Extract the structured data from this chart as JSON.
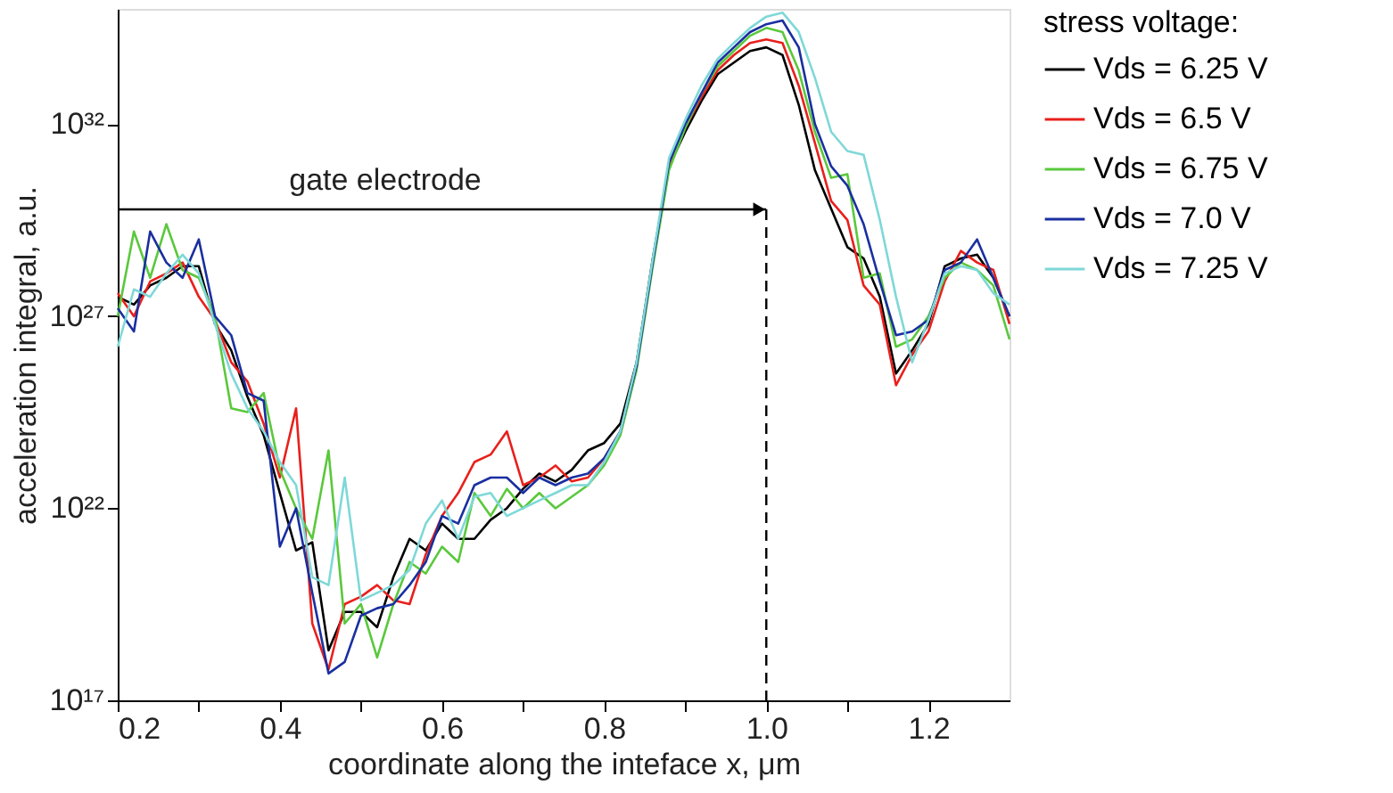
{
  "chart_data": {
    "type": "line",
    "xlabel": "coordinate along the inteface x, μm",
    "ylabel": "acceleration integral, a.u.",
    "legend_title": "stress voltage:",
    "legend": "right",
    "log": "y",
    "grid": false,
    "line_style": "solid",
    "marker": "none",
    "xlim": [
      0.2,
      1.3
    ],
    "ylim": [
      1e+17,
      1e+35
    ],
    "xticks": [
      0.2,
      {
        "value": 0.3,
        "label": null
      },
      0.4,
      {
        "value": 0.5,
        "label": null
      },
      0.6,
      {
        "value": 0.7,
        "label": null
      },
      0.8,
      {
        "value": 0.9,
        "label": null
      },
      {
        "value": 1.0,
        "label": "1.0"
      },
      {
        "value": 1.1,
        "label": null
      },
      1.2
    ],
    "yticks": [
      {
        "value": 1e+17,
        "label": "10¹⁷"
      },
      {
        "value": 1e+22,
        "label": "10²²"
      },
      {
        "value": 1e+27,
        "label": "10²⁷"
      },
      {
        "value": 1e+32,
        "label": "10³²"
      }
    ],
    "x": [
      0.2,
      0.22,
      0.24,
      0.26,
      0.28,
      0.3,
      0.32,
      0.34,
      0.36,
      0.38,
      0.4,
      0.42,
      0.44,
      0.46,
      0.48,
      0.5,
      0.52,
      0.54,
      0.56,
      0.58,
      0.6,
      0.62,
      0.64,
      0.66,
      0.68,
      0.7,
      0.72,
      0.74,
      0.76,
      0.78,
      0.8,
      0.82,
      0.84,
      0.86,
      0.88,
      0.9,
      0.92,
      0.94,
      0.96,
      0.98,
      1.0,
      1.02,
      1.04,
      1.06,
      1.08,
      1.1,
      1.12,
      1.14,
      1.16,
      1.18,
      1.2,
      1.22,
      1.24,
      1.26,
      1.28,
      1.3
    ],
    "series": [
      {
        "name": "Vds = 6.25 V",
        "color": "#000000",
        "values": [
          3.2e+27,
          2e+27,
          6.3e+27,
          1e+28,
          2e+28,
          2e+28,
          6.3e+26,
          1.3e+26,
          8e+24,
          8e+23,
          2.5e+22,
          8e+20,
          1.3e+21,
          2e+18,
          2e+19,
          2e+19,
          8e+18,
          1.6e+20,
          1.6e+21,
          8e+20,
          4e+21,
          1.6e+21,
          1.6e+21,
          5e+21,
          1e+22,
          3.2e+22,
          8e+22,
          5e+22,
          1e+23,
          3.2e+23,
          5e+23,
          1.6e+24,
          6.3e+25,
          3.2e+28,
          8e+30,
          6.3e+31,
          4e+32,
          2e+33,
          4e+33,
          8e+33,
          1e+34,
          6.3e+33,
          3.2e+32,
          6.3e+30,
          6.3e+29,
          6.3e+28,
          3.2e+28,
          3.2e+27,
          3.2e+25,
          1.3e+26,
          6.3e+26,
          2e+28,
          3.2e+28,
          4e+28,
          1e+28,
          1e+27
        ]
      },
      {
        "name": "Vds = 6.5 V",
        "color": "#e8201c",
        "values": [
          4e+27,
          1e+27,
          8e+27,
          1.3e+28,
          2.5e+28,
          3.2e+27,
          8e+26,
          6.3e+25,
          2e+25,
          1.6e+24,
          6.3e+22,
          4e+24,
          1e+19,
          6.3e+17,
          3.2e+19,
          5e+19,
          1e+20,
          4e+19,
          3.2e+19,
          6.3e+20,
          6.3e+21,
          2.5e+22,
          1.6e+23,
          2.5e+23,
          1e+24,
          4e+22,
          6.3e+22,
          1.3e+23,
          5e+22,
          6.3e+22,
          2e+23,
          1e+24,
          5e+25,
          2.5e+28,
          8e+30,
          8e+31,
          5e+32,
          2.5e+33,
          6.3e+33,
          1.3e+34,
          1.6e+34,
          1.3e+34,
          1e+33,
          3.2e+31,
          1e+30,
          3.2e+29,
          6.3e+27,
          2e+27,
          1.6e+25,
          1e+26,
          4e+26,
          8e+27,
          5e+28,
          2.5e+28,
          1.6e+28,
          6.3e+26
        ]
      },
      {
        "name": "Vds = 6.75 V",
        "color": "#5ac83c",
        "values": [
          1e+27,
          1.6e+29,
          1e+28,
          2.5e+29,
          1.6e+28,
          1e+28,
          1e+27,
          4e+24,
          3.2e+24,
          1e+25,
          1e+23,
          1e+22,
          1.6e+21,
          3.2e+23,
          1e+19,
          3.2e+19,
          1.3e+18,
          3.2e+19,
          4e+20,
          2e+20,
          1e+21,
          4e+20,
          2.5e+22,
          6.3e+21,
          3.2e+22,
          1e+22,
          2.5e+22,
          1e+22,
          2e+22,
          4e+22,
          1.3e+23,
          8e+23,
          4e+25,
          2e+28,
          6.3e+30,
          8e+31,
          6.3e+32,
          3.2e+33,
          8e+33,
          2e+34,
          3.2e+34,
          2.5e+34,
          2.5e+33,
          6.3e+31,
          4e+30,
          5e+30,
          1e+28,
          1.3e+28,
          1.6e+26,
          2.5e+26,
          1e+27,
          1e+28,
          2.5e+28,
          1.6e+28,
          6.3e+27,
          2.5e+26
        ]
      },
      {
        "name": "Vds = 7.0 V",
        "color": "#1a2fa0",
        "values": [
          1.6e+27,
          4e+26,
          1.6e+29,
          2.5e+28,
          1e+28,
          1e+29,
          1e+27,
          3.2e+26,
          1e+25,
          6.3e+24,
          1e+21,
          1e+22,
          6.3e+19,
          5e+17,
          1e+18,
          1.6e+19,
          2.5e+19,
          3.2e+19,
          1e+20,
          4e+20,
          6.3e+21,
          4e+21,
          4e+22,
          6.3e+22,
          6.3e+22,
          2.5e+22,
          6.3e+22,
          4e+22,
          6.3e+22,
          8e+22,
          2e+23,
          1e+24,
          5e+25,
          2.5e+28,
          1e+31,
          1e+32,
          6.3e+32,
          4e+33,
          1e+34,
          2.5e+34,
          4e+34,
          5e+34,
          1e+34,
          1e+32,
          8e+30,
          2.5e+30,
          2.5e+29,
          8e+27,
          3.2e+26,
          4e+26,
          8e+26,
          1.6e+28,
          2.5e+28,
          1e+29,
          1e+28,
          1e+27
        ]
      },
      {
        "name": "Vds = 7.25 V",
        "color": "#7fd8d8",
        "values": [
          1.6e+26,
          5e+27,
          3.2e+27,
          1.3e+28,
          4e+28,
          1.3e+28,
          6.3e+26,
          3.2e+25,
          4e+24,
          1e+24,
          1.6e+23,
          4e+22,
          1.6e+20,
          1e+20,
          6.3e+22,
          4e+19,
          6.3e+19,
          1e+20,
          2.5e+20,
          4e+21,
          1.6e+22,
          1.6e+21,
          2e+22,
          2.5e+22,
          6.3e+21,
          1e+22,
          1.6e+22,
          2.5e+22,
          4e+22,
          4e+22,
          1.6e+23,
          1e+24,
          6.3e+25,
          3.2e+28,
          1.3e+31,
          1.3e+32,
          1e+33,
          5e+33,
          1.3e+34,
          3.2e+34,
          6.3e+34,
          8e+34,
          2.5e+34,
          1.6e+33,
          6.3e+31,
          2e+31,
          1.6e+31,
          3.2e+29,
          3.2e+27,
          6.3e+25,
          8e+26,
          1.3e+28,
          2e+28,
          1.6e+28,
          4e+27,
          2e+27
        ]
      }
    ],
    "ref_lines": [
      {
        "axis": "x",
        "value": 1.0,
        "line_style": "dashed",
        "color": "#000000"
      }
    ],
    "annotations": [
      "gate electrode"
    ]
  }
}
